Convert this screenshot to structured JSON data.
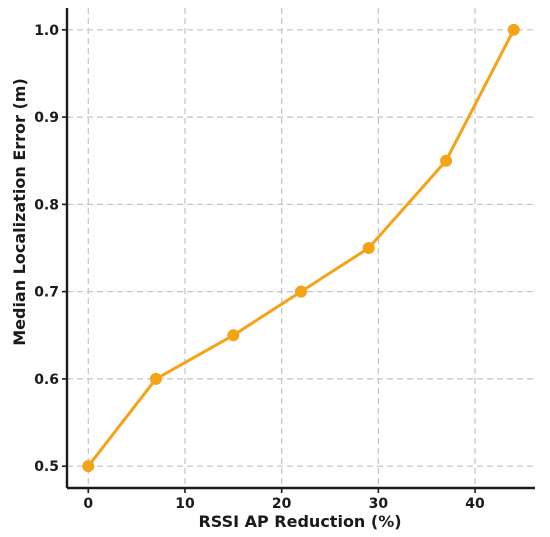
{
  "chart_data": {
    "type": "line",
    "title": "",
    "xlabel": "RSSI AP Reduction (%)",
    "ylabel": "Median Localization Error (m)",
    "xlim": [
      -2.2,
      46.2
    ],
    "ylim": [
      0.475,
      1.025
    ],
    "xticks": [
      0,
      10,
      20,
      30,
      40
    ],
    "yticks": [
      0.5,
      0.6,
      0.7,
      0.8,
      0.9,
      1.0
    ],
    "xtick_labels": [
      "0",
      "10",
      "20",
      "30",
      "40"
    ],
    "ytick_labels": [
      "0.5",
      "0.6",
      "0.7",
      "0.8",
      "0.9",
      "1.0"
    ],
    "grid": true,
    "series": [
      {
        "color": "#f5a316",
        "marker": "circle",
        "x": [
          0,
          7,
          15,
          22,
          29,
          37,
          44
        ],
        "values": [
          0.5,
          0.6,
          0.65,
          0.7,
          0.75,
          0.85,
          1.0
        ]
      }
    ]
  }
}
